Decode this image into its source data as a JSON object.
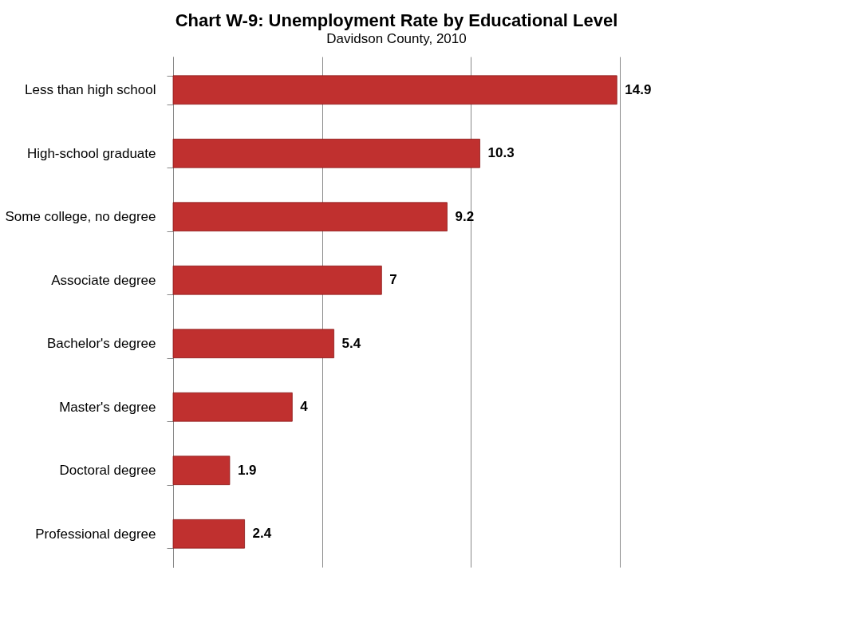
{
  "chart_data": {
    "type": "bar",
    "orientation": "horizontal",
    "title": "Chart W-9: Unemployment Rate by Educational Level",
    "subtitle": "Davidson County, 2010",
    "categories": [
      "Less than high school",
      "High-school graduate",
      "Some college, no degree",
      "Associate degree",
      "Bachelor's degree",
      "Master's degree",
      "Doctoral degree",
      "Professional degree"
    ],
    "values": [
      14.9,
      10.3,
      9.2,
      7,
      5.4,
      4,
      1.9,
      2.4
    ],
    "color": "#c0302f",
    "xlim": [
      0,
      15
    ],
    "xticks": [
      {
        "value": 0,
        "label": null
      },
      {
        "value": 5,
        "label": null
      },
      {
        "value": 10,
        "label": null
      },
      {
        "value": 15,
        "label": null
      }
    ],
    "grid": "x",
    "tick_labels": "y",
    "data_labels": true
  }
}
